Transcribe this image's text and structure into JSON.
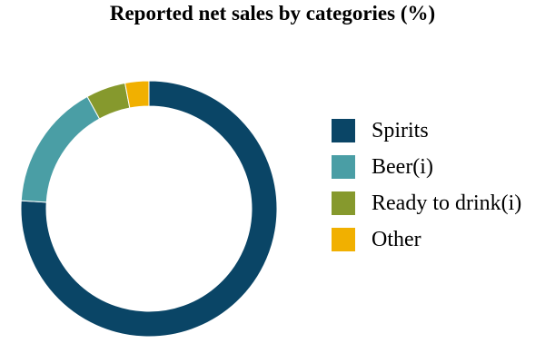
{
  "chart_data": {
    "type": "pie",
    "title": "Reported net sales by categories (%)",
    "categories": [
      "Spirits",
      "Beer(i)",
      "Ready to drink(i)",
      "Other"
    ],
    "values": [
      76,
      16,
      5,
      3
    ],
    "colors": [
      "#0a4566",
      "#4a9ea5",
      "#86992d",
      "#f1b000"
    ],
    "hole": "donut",
    "legend_position": "right"
  }
}
